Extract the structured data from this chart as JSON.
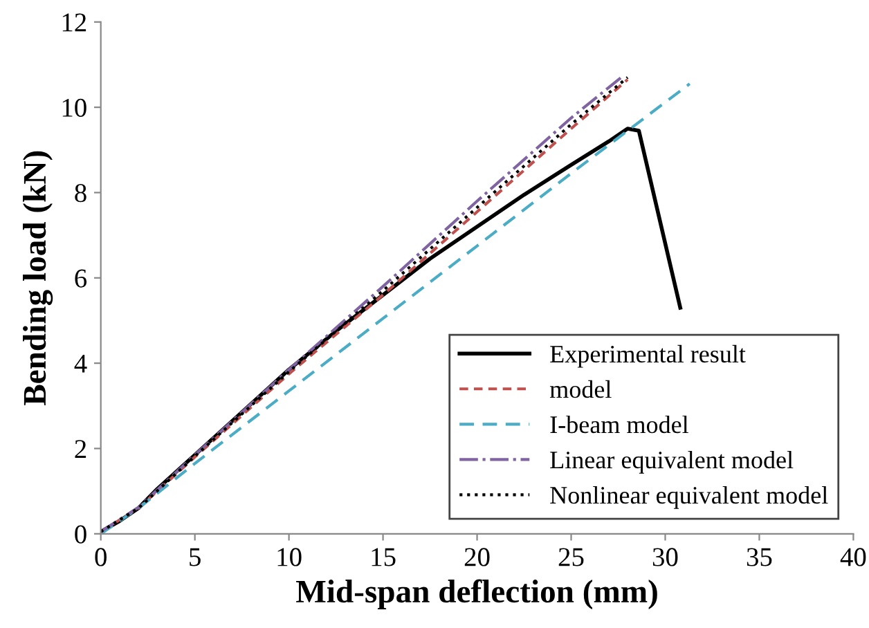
{
  "chart_data": {
    "type": "line",
    "xlabel": "Mid-span deflection (mm)",
    "ylabel": "Bending load (kN)",
    "xlim": [
      0,
      40
    ],
    "xticks": [
      0,
      5,
      10,
      15,
      20,
      25,
      30,
      35,
      40
    ],
    "ylim": [
      0,
      12
    ],
    "yticks": [
      0,
      2,
      4,
      6,
      8,
      10,
      12
    ],
    "grid": false,
    "legend": "bottom right",
    "marker": "none",
    "series": [
      {
        "name": "Experimental result",
        "color": "#000000",
        "line_style": "solid",
        "x": [
          0,
          1,
          2,
          3,
          5,
          7.5,
          10,
          12.5,
          15,
          17.5,
          20,
          22.5,
          25,
          27,
          28,
          28.6,
          30.8
        ],
        "values": [
          0.05,
          0.3,
          0.6,
          1.05,
          1.85,
          2.85,
          3.85,
          4.75,
          5.6,
          6.45,
          7.2,
          7.95,
          8.65,
          9.2,
          9.5,
          9.45,
          5.3
        ]
      },
      {
        "name": "model",
        "color": "#c0504d",
        "line_style": "dashed",
        "x": [
          0,
          2,
          5,
          10,
          15,
          20,
          25,
          28
        ],
        "values": [
          0.05,
          0.6,
          1.8,
          3.75,
          5.6,
          7.55,
          9.5,
          10.65
        ]
      },
      {
        "name": "I-beam model",
        "color": "#4bacc6",
        "line_style": "dashed",
        "x": [
          0,
          2,
          5,
          10,
          15,
          20,
          25,
          31.3
        ],
        "values": [
          0,
          0.6,
          1.65,
          3.35,
          5.05,
          6.75,
          8.45,
          10.55
        ]
      },
      {
        "name": "Linear equivalent model",
        "color": "#8064a2",
        "line_style": "dashdot",
        "x": [
          0,
          2,
          5,
          10,
          15,
          20,
          25,
          27.8
        ],
        "values": [
          0.05,
          0.62,
          1.85,
          3.85,
          5.8,
          7.8,
          9.75,
          10.75
        ]
      },
      {
        "name": "Nonlinear equivalent model",
        "color": "#000000",
        "line_style": "dotted",
        "x": [
          0,
          2,
          5,
          10,
          15,
          20,
          25,
          28
        ],
        "values": [
          0.05,
          0.6,
          1.82,
          3.8,
          5.7,
          7.65,
          9.6,
          10.7
        ]
      }
    ]
  }
}
